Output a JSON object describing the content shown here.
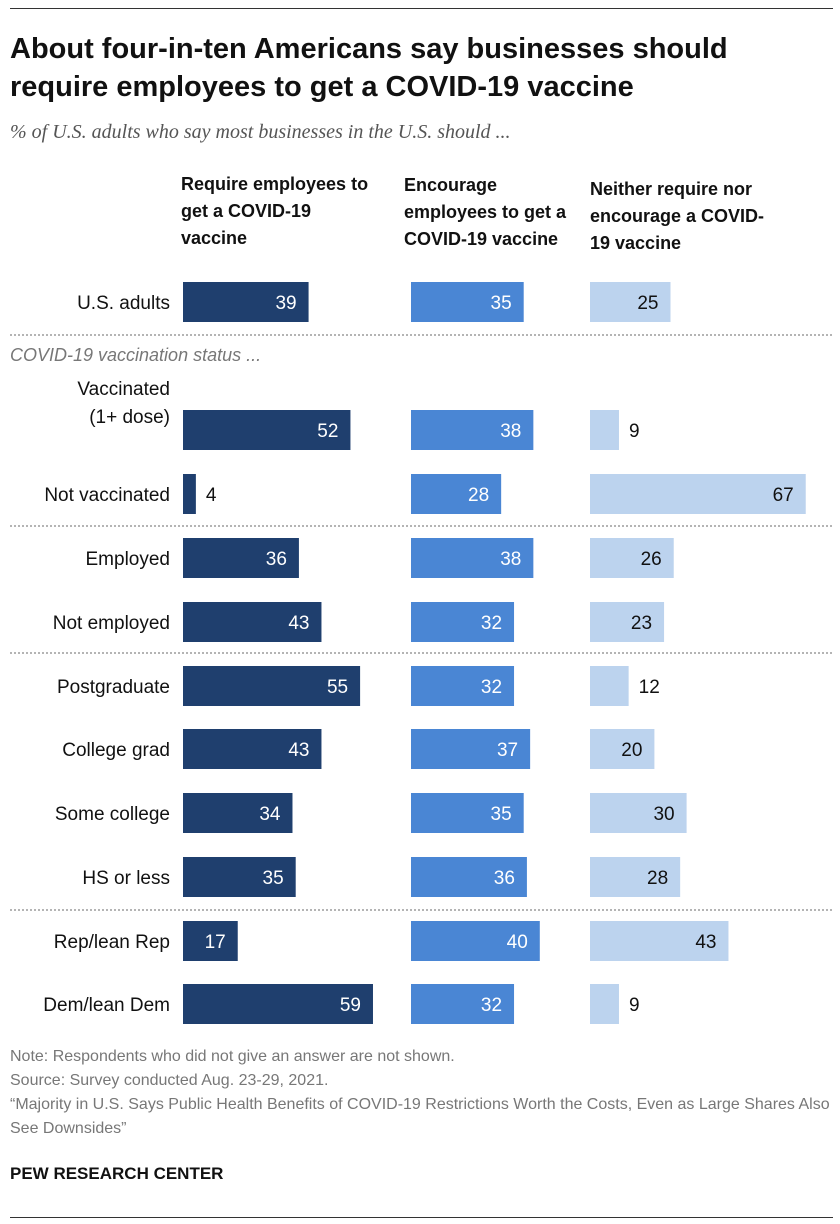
{
  "title": "About four-in-ten Americans say businesses should require employees to get a COVID-19 vaccine",
  "subtitle": "% of U.S. adults who say most businesses in the U.S. should ...",
  "notes": {
    "note": "Note: Respondents who did not give an answer are not shown.",
    "source": "Source: Survey conducted Aug. 23-29, 2021.",
    "report": "“Majority in U.S. Says Public Health Benefits of COVID-19 Restrictions Worth the Costs, Even as Large Shares Also See Downsides”"
  },
  "footer": "PEW RESEARCH CENTER",
  "colors": {
    "require": "#1f3f6e",
    "encourage": "#4a86d4",
    "neither": "#bcd3ee",
    "divider": "#888888"
  },
  "chart_data": {
    "type": "bar",
    "orientation": "horizontal",
    "title": "About four-in-ten Americans say businesses should require employees to get a COVID-19 vaccine",
    "subtitle": "% of U.S. adults who say most businesses in the U.S. should ...",
    "series": [
      {
        "name": "Require employees to get a COVID-19 vaccine",
        "values": [
          39,
          52,
          4,
          36,
          43,
          55,
          43,
          34,
          35,
          17,
          59
        ]
      },
      {
        "name": "Encourage employees to get a COVID-19 vaccine",
        "values": [
          35,
          38,
          28,
          38,
          32,
          32,
          37,
          35,
          36,
          40,
          32
        ]
      },
      {
        "name": "Neither require nor encourage a COVID-19 vaccine",
        "values": [
          25,
          9,
          67,
          26,
          23,
          12,
          20,
          30,
          28,
          43,
          9
        ]
      }
    ],
    "categories": [
      "U.S. adults",
      "Vaccinated\n(1+ dose)",
      "Not vaccinated",
      "Employed",
      "Not employed",
      "Postgraduate",
      "College grad",
      "Some college",
      "HS or less",
      "Rep/lean Rep",
      "Dem/lean Dem"
    ],
    "group_label": "COVID-19 vaccination status ...",
    "group_breaks_after": [
      0,
      2,
      4,
      8
    ],
    "xlim": [
      0,
      100
    ]
  }
}
